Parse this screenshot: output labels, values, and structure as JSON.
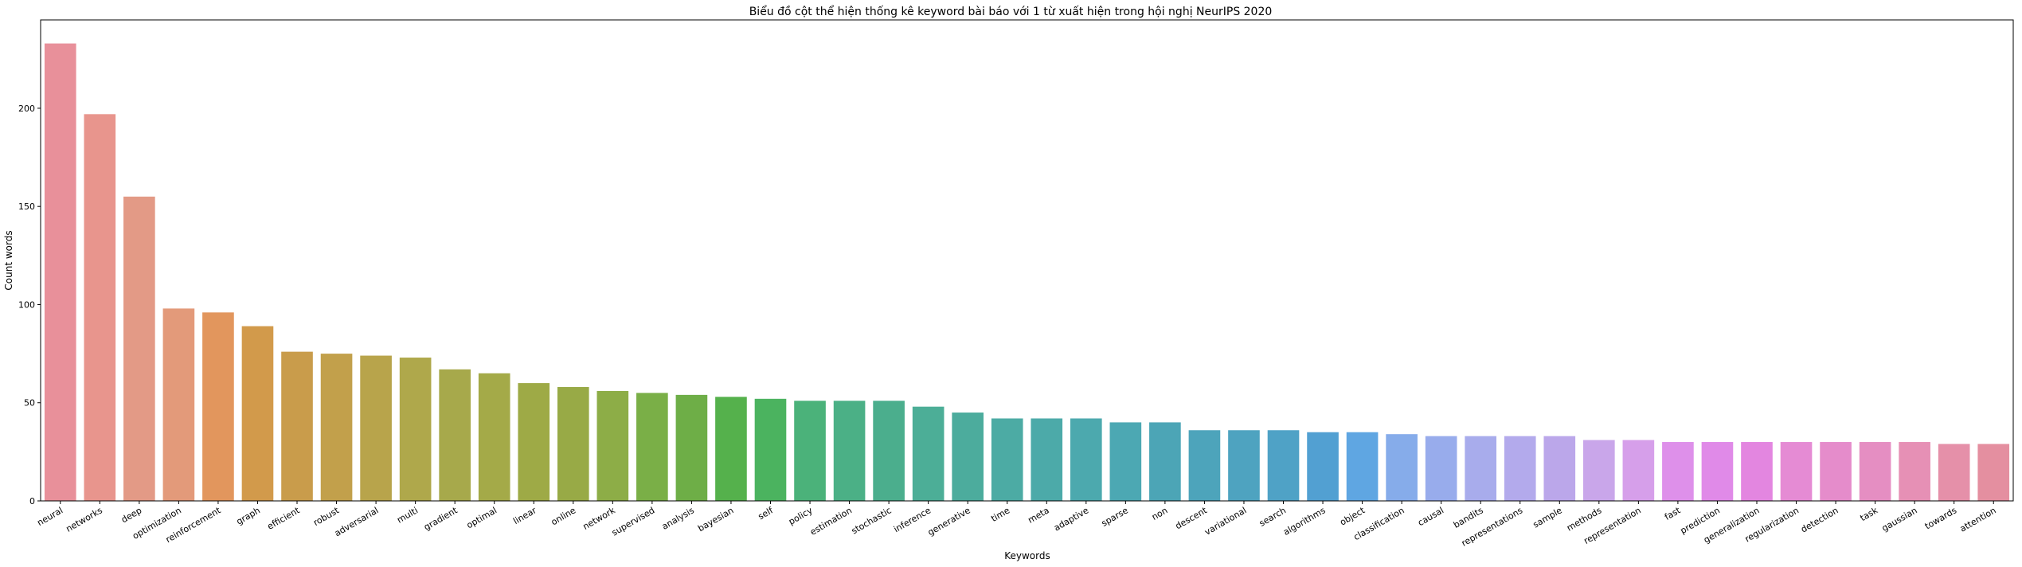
{
  "chart_data": {
    "type": "bar",
    "title": "Biểu đồ cột thể hiện thống kê keyword bài báo với 1 từ xuất hiện trong hội nghị NeurIPS 2020",
    "xlabel": "Keywords",
    "ylabel": "Count words",
    "ylim": [
      0,
      245
    ],
    "yticks": [
      0,
      50,
      100,
      150,
      200
    ],
    "grid": false,
    "categories": [
      "neural",
      "networks",
      "deep",
      "optimization",
      "reinforcement",
      "graph",
      "efficient",
      "robust",
      "adversarial",
      "multi",
      "gradient",
      "optimal",
      "linear",
      "online",
      "network",
      "supervised",
      "analysis",
      "bayesian",
      "self",
      "policy",
      "estimation",
      "stochastic",
      "inference",
      "generative",
      "time",
      "meta",
      "adaptive",
      "sparse",
      "non",
      "descent",
      "variational",
      "search",
      "algorithms",
      "object",
      "classification",
      "causal",
      "bandits",
      "representations",
      "sample",
      "methods",
      "representation",
      "fast",
      "prediction",
      "generalization",
      "regularization",
      "detection",
      "task",
      "gaussian",
      "towards",
      "attention"
    ],
    "values": [
      233,
      197,
      155,
      98,
      96,
      89,
      76,
      75,
      74,
      73,
      67,
      65,
      60,
      58,
      56,
      55,
      54,
      53,
      52,
      51,
      51,
      51,
      48,
      45,
      42,
      42,
      42,
      40,
      40,
      36,
      36,
      36,
      35,
      35,
      34,
      33,
      33,
      33,
      33,
      31,
      31,
      30,
      30,
      30,
      30,
      30,
      30,
      30,
      29,
      29
    ],
    "colors": [
      "#e8909a",
      "#e8958d",
      "#e39a86",
      "#e39a7a",
      "#e2965d",
      "#d29a4b",
      "#c99c4b",
      "#c2a04b",
      "#b8a44b",
      "#afa84b",
      "#a7a94b",
      "#a4aa48",
      "#9eaa46",
      "#98aa46",
      "#8dad47",
      "#7aaf47",
      "#6eae47",
      "#55b14c",
      "#4bb35f",
      "#4bb27a",
      "#4bb086",
      "#4bae8d",
      "#4cae97",
      "#4cac9d",
      "#4caba4",
      "#4caaa9",
      "#4ca9ae",
      "#4ca8b3",
      "#4ca5b6",
      "#4da4bb",
      "#4ea3c0",
      "#4fa2c6",
      "#52a0d2",
      "#5fa6e2",
      "#86acea",
      "#98acec",
      "#a8acec",
      "#b3aaec",
      "#bba7ea",
      "#c9a6ea",
      "#d69fea",
      "#de90ea",
      "#e08ae8",
      "#e386e0",
      "#e58bd4",
      "#e58ccb",
      "#e58ec2",
      "#e690b5",
      "#e590a9",
      "#e48fa0"
    ]
  }
}
